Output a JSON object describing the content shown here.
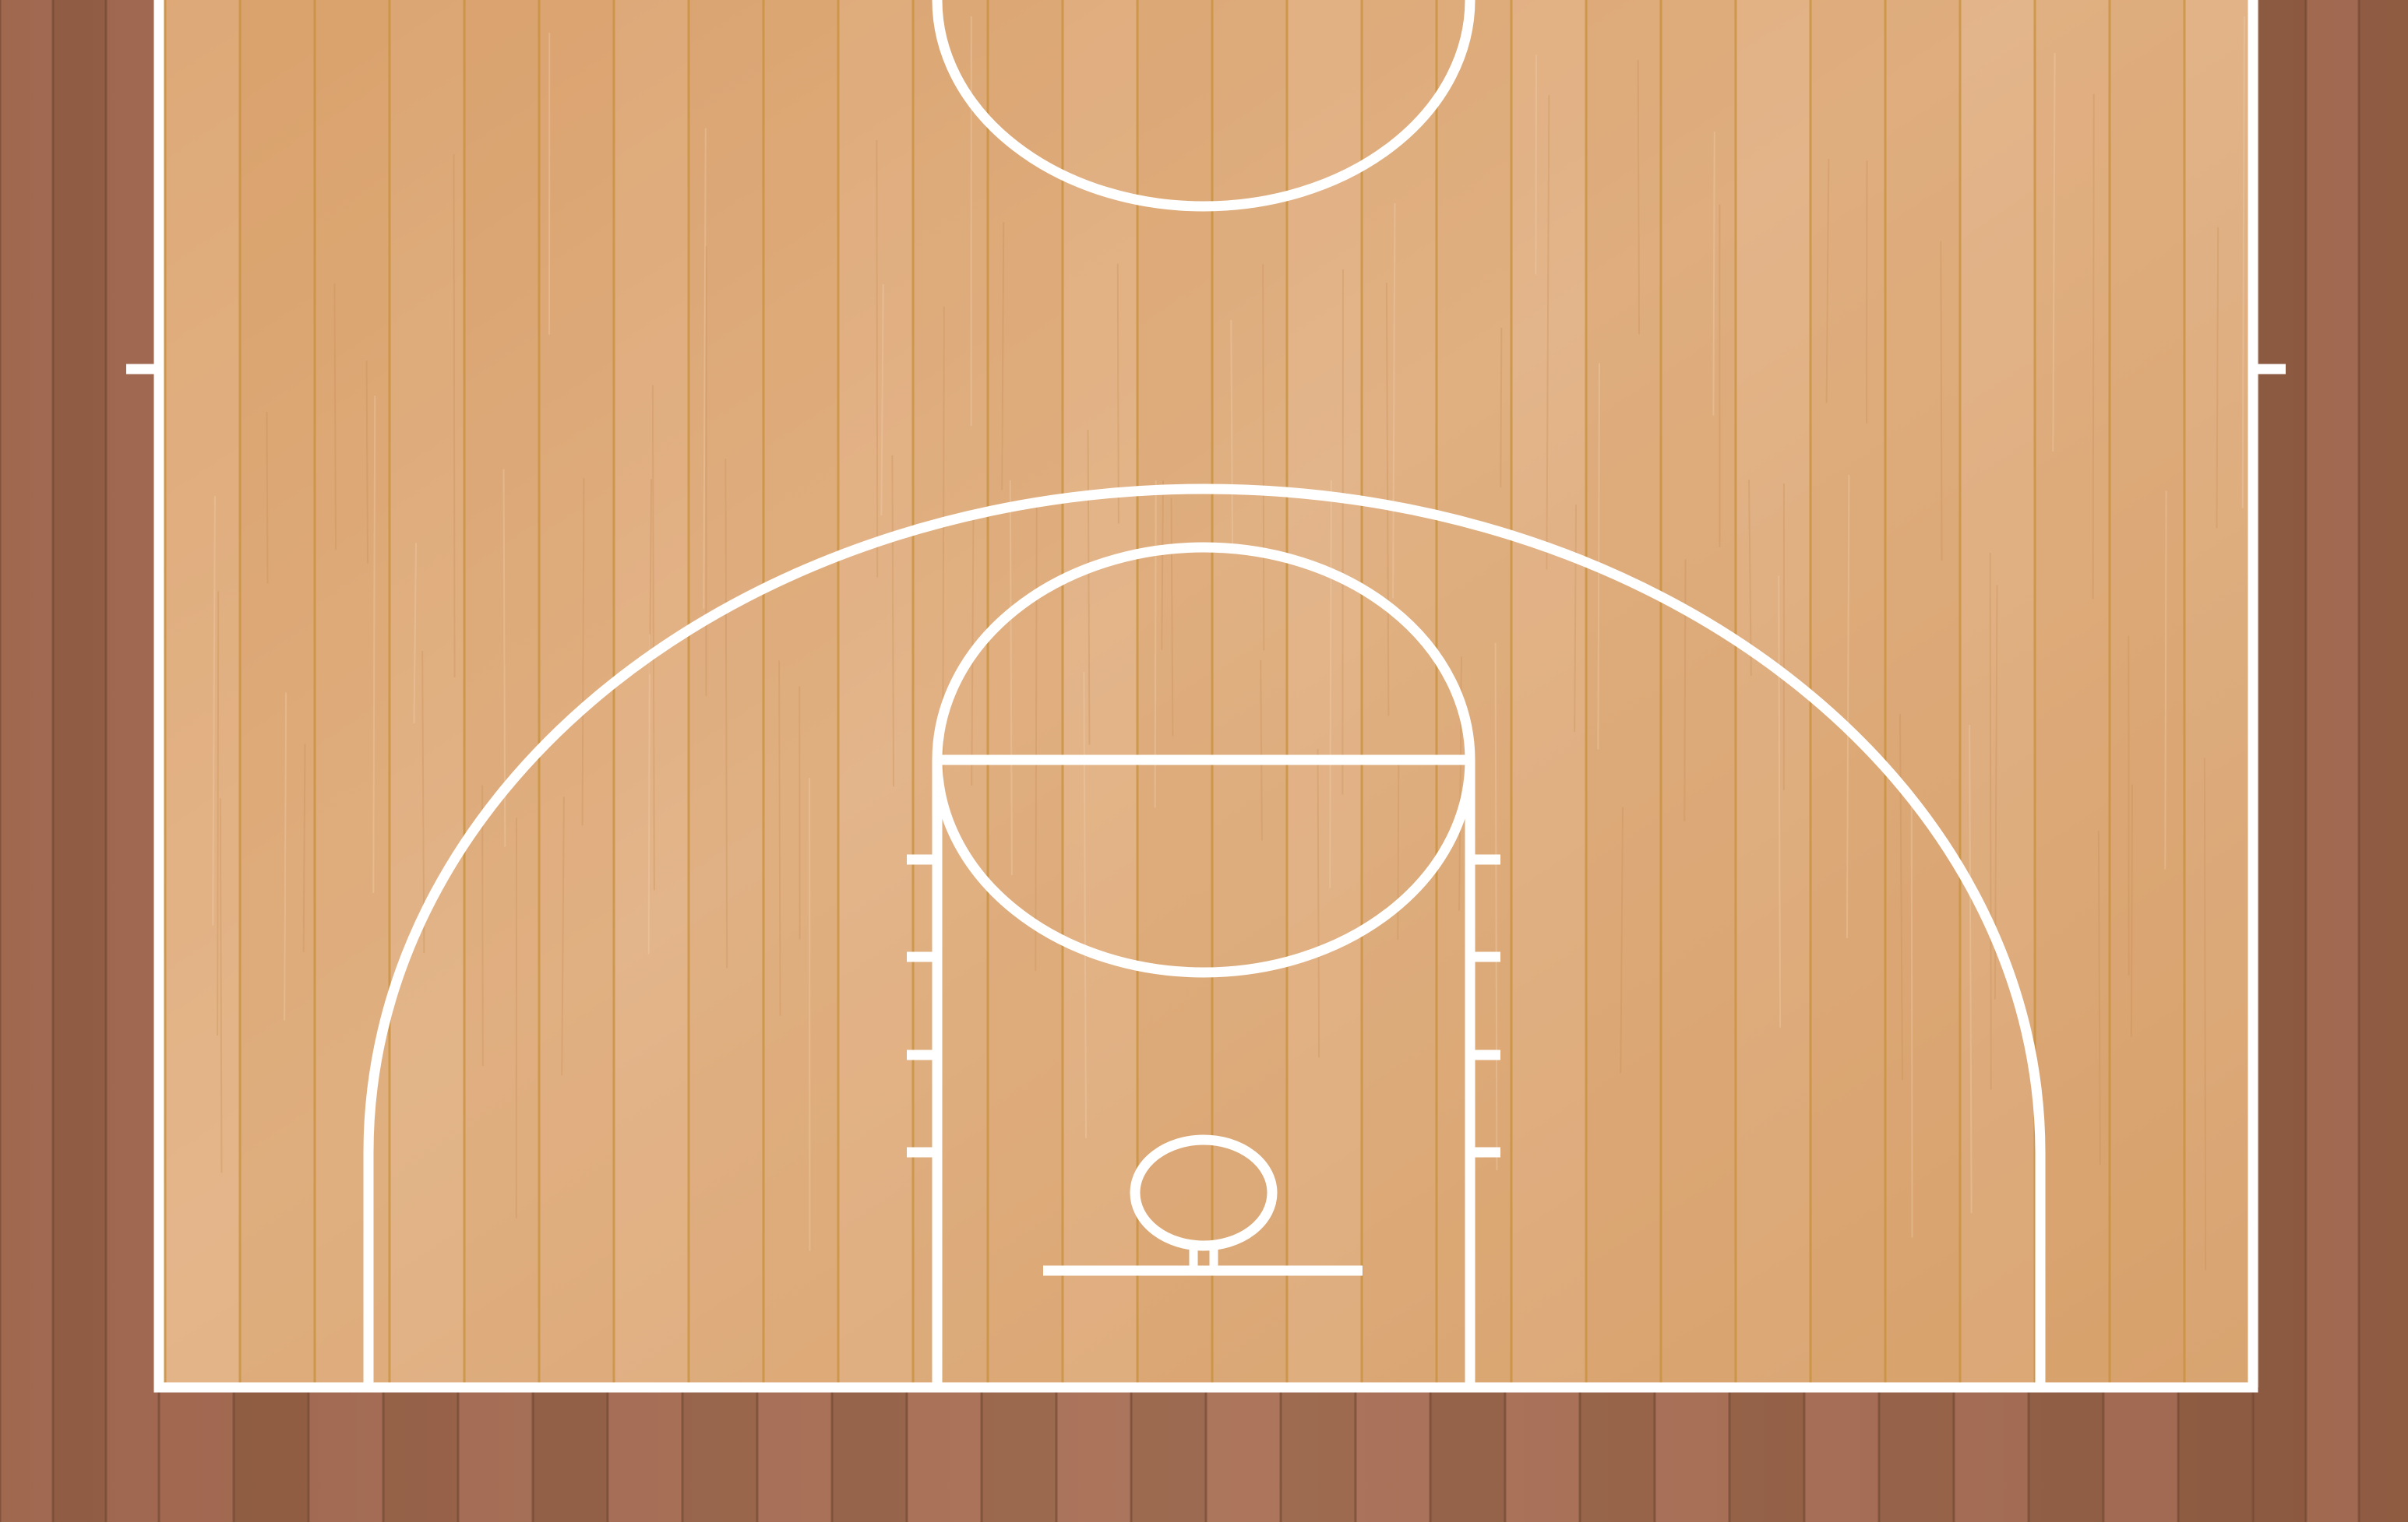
{
  "colors": {
    "surround_wood": "#a8705a",
    "surround_dark": "#7d5238",
    "court_wood": "#dba46f",
    "court_light": "#e6b88e",
    "board_seam": "#c8903c",
    "lines": "#ffffff",
    "page_background": "#ffffff"
  },
  "court": {
    "type": "basketball-half-court",
    "view": "top-down",
    "surface": "wood-planks",
    "elements": [
      "center-circle",
      "half-court-side-ticks",
      "three-point-arc",
      "key-lane",
      "free-throw-circle",
      "lane-hash-marks",
      "rim",
      "backboard",
      "baseline"
    ]
  }
}
